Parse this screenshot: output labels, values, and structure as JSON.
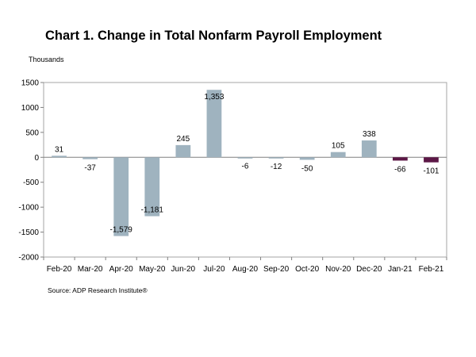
{
  "chart_data": {
    "type": "bar",
    "title": "Chart 1. Change in Total Nonfarm Payroll Employment",
    "unit_label": "Thousands",
    "source": "Source: ADP Research Institute®",
    "categories": [
      "Feb-20",
      "Mar-20",
      "Apr-20",
      "May-20",
      "Jun-20",
      "Jul-20",
      "Aug-20",
      "Sep-20",
      "Oct-20",
      "Nov-20",
      "Dec-20",
      "Jan-21",
      "Feb-21"
    ],
    "values": [
      31,
      -37,
      -1579,
      -1181,
      245,
      1353,
      -6,
      -12,
      -50,
      105,
      338,
      -66,
      -101
    ],
    "value_labels": [
      "31",
      "-37",
      "-1,579",
      "-1,181",
      "245",
      "1,353",
      "-6",
      "-12",
      "-50",
      "105",
      "338",
      "-66",
      "-101"
    ],
    "yticks": [
      1500,
      1000,
      500,
      0,
      -500,
      -1000,
      -1500,
      -2000
    ],
    "ytick_labels": [
      "1500",
      "1000",
      "500",
      "0",
      "-500",
      "-1000",
      "-1500",
      "-2000"
    ],
    "ylim": [
      -2000,
      1500
    ],
    "grid": false,
    "bar_color": "#9fb3bf",
    "highlight_color": "#5c1746",
    "highlight_categories": [
      "Jan-21",
      "Feb-21"
    ]
  }
}
